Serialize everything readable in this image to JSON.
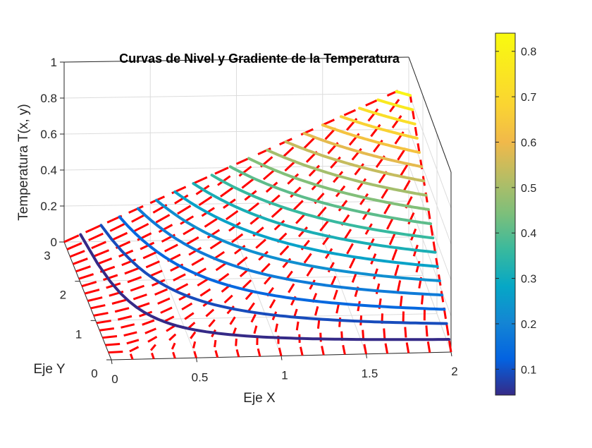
{
  "chart_data": {
    "type": "contour3",
    "title": "Curvas de Nivel y Gradiente de la Temperatura",
    "xlabel": "Eje X",
    "ylabel": "Eje Y",
    "zlabel": "Temperatura T(x, y)",
    "xlim": [
      0,
      2
    ],
    "ylim": [
      0,
      3
    ],
    "zlim": [
      0,
      1
    ],
    "xticks": [
      "0",
      "0.5",
      "1",
      "1.5",
      "2"
    ],
    "yticks": [
      "0",
      "1",
      "2",
      "3"
    ],
    "zticks": [
      "0",
      "0.2",
      "0.4",
      "0.6",
      "0.8",
      "1"
    ],
    "grid": true,
    "colormap": "parula",
    "colorbar": {
      "position": "right",
      "range": [
        0.043,
        0.84
      ],
      "ticks": [
        "0.1",
        "0.2",
        "0.3",
        "0.4",
        "0.5",
        "0.6",
        "0.7",
        "0.8"
      ]
    },
    "contour_levels": [
      0.04,
      0.09,
      0.135,
      0.18,
      0.225,
      0.27,
      0.315,
      0.36,
      0.405,
      0.45,
      0.495,
      0.54,
      0.585,
      0.63,
      0.675,
      0.72,
      0.765,
      0.81
    ],
    "gradient_arrows_color": "#ff0000",
    "series": [
      {
        "kind": "contour-lines"
      },
      {
        "kind": "gradient-quiver"
      }
    ]
  }
}
